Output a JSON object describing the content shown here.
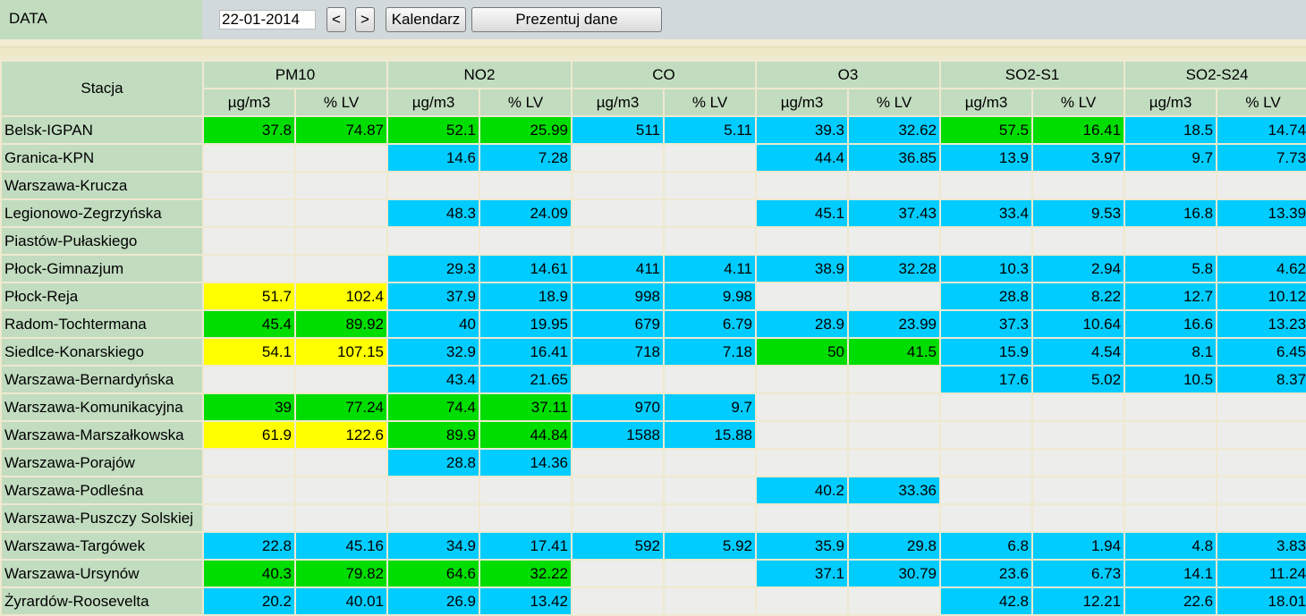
{
  "toolbar": {
    "label": "DATA",
    "date_value": "22-01-2014",
    "prev_label": "<",
    "next_label": ">",
    "calendar_label": "Kalendarz",
    "present_label": "Prezentuj dane"
  },
  "table": {
    "station_header": "Stacja",
    "pollutants": [
      "PM10",
      "NO2",
      "CO",
      "O3",
      "SO2-S1",
      "SO2-S24"
    ],
    "unit_label": "µg/m3",
    "lv_label": "% LV",
    "colors": {
      "none": "#ededeb",
      "blue": "#00ccff",
      "green": "#00dd00",
      "yellow": "#ffff00"
    },
    "rows": [
      {
        "station": "Belsk-IGPAN",
        "cells": [
          [
            "37.8",
            "74.87",
            "green"
          ],
          [
            "52.1",
            "25.99",
            "green"
          ],
          [
            "511",
            "5.11",
            "blue"
          ],
          [
            "39.3",
            "32.62",
            "blue"
          ],
          [
            "57.5",
            "16.41",
            "green"
          ],
          [
            "18.5",
            "14.74",
            "blue"
          ]
        ]
      },
      {
        "station": "Granica-KPN",
        "cells": [
          [
            "",
            "",
            "none"
          ],
          [
            "14.6",
            "7.28",
            "blue"
          ],
          [
            "",
            "",
            "none"
          ],
          [
            "44.4",
            "36.85",
            "blue"
          ],
          [
            "13.9",
            "3.97",
            "blue"
          ],
          [
            "9.7",
            "7.73",
            "blue"
          ]
        ]
      },
      {
        "station": "Warszawa-Krucza",
        "cells": [
          [
            "",
            "",
            "none"
          ],
          [
            "",
            "",
            "none"
          ],
          [
            "",
            "",
            "none"
          ],
          [
            "",
            "",
            "none"
          ],
          [
            "",
            "",
            "none"
          ],
          [
            "",
            "",
            "none"
          ]
        ]
      },
      {
        "station": "Legionowo-Zegrzyńska",
        "cells": [
          [
            "",
            "",
            "none"
          ],
          [
            "48.3",
            "24.09",
            "blue"
          ],
          [
            "",
            "",
            "none"
          ],
          [
            "45.1",
            "37.43",
            "blue"
          ],
          [
            "33.4",
            "9.53",
            "blue"
          ],
          [
            "16.8",
            "13.39",
            "blue"
          ]
        ]
      },
      {
        "station": "Piastów-Pułaskiego",
        "cells": [
          [
            "",
            "",
            "none"
          ],
          [
            "",
            "",
            "none"
          ],
          [
            "",
            "",
            "none"
          ],
          [
            "",
            "",
            "none"
          ],
          [
            "",
            "",
            "none"
          ],
          [
            "",
            "",
            "none"
          ]
        ]
      },
      {
        "station": "Płock-Gimnazjum",
        "cells": [
          [
            "",
            "",
            "none"
          ],
          [
            "29.3",
            "14.61",
            "blue"
          ],
          [
            "411",
            "4.11",
            "blue"
          ],
          [
            "38.9",
            "32.28",
            "blue"
          ],
          [
            "10.3",
            "2.94",
            "blue"
          ],
          [
            "5.8",
            "4.62",
            "blue"
          ]
        ]
      },
      {
        "station": "Płock-Reja",
        "cells": [
          [
            "51.7",
            "102.4",
            "yellow"
          ],
          [
            "37.9",
            "18.9",
            "blue"
          ],
          [
            "998",
            "9.98",
            "blue"
          ],
          [
            "",
            "",
            "none"
          ],
          [
            "28.8",
            "8.22",
            "blue"
          ],
          [
            "12.7",
            "10.12",
            "blue"
          ]
        ]
      },
      {
        "station": "Radom-Tochtermana",
        "cells": [
          [
            "45.4",
            "89.92",
            "green"
          ],
          [
            "40",
            "19.95",
            "blue"
          ],
          [
            "679",
            "6.79",
            "blue"
          ],
          [
            "28.9",
            "23.99",
            "blue"
          ],
          [
            "37.3",
            "10.64",
            "blue"
          ],
          [
            "16.6",
            "13.23",
            "blue"
          ]
        ]
      },
      {
        "station": "Siedlce-Konarskiego",
        "cells": [
          [
            "54.1",
            "107.15",
            "yellow"
          ],
          [
            "32.9",
            "16.41",
            "blue"
          ],
          [
            "718",
            "7.18",
            "blue"
          ],
          [
            "50",
            "41.5",
            "green"
          ],
          [
            "15.9",
            "4.54",
            "blue"
          ],
          [
            "8.1",
            "6.45",
            "blue"
          ]
        ]
      },
      {
        "station": "Warszawa-Bernardyńska",
        "cells": [
          [
            "",
            "",
            "none"
          ],
          [
            "43.4",
            "21.65",
            "blue"
          ],
          [
            "",
            "",
            "none"
          ],
          [
            "",
            "",
            "none"
          ],
          [
            "17.6",
            "5.02",
            "blue"
          ],
          [
            "10.5",
            "8.37",
            "blue"
          ]
        ]
      },
      {
        "station": "Warszawa-Komunikacyjna",
        "cells": [
          [
            "39",
            "77.24",
            "green"
          ],
          [
            "74.4",
            "37.11",
            "green"
          ],
          [
            "970",
            "9.7",
            "blue"
          ],
          [
            "",
            "",
            "none"
          ],
          [
            "",
            "",
            "none"
          ],
          [
            "",
            "",
            "none"
          ]
        ]
      },
      {
        "station": "Warszawa-Marszałkowska",
        "cells": [
          [
            "61.9",
            "122.6",
            "yellow"
          ],
          [
            "89.9",
            "44.84",
            "green"
          ],
          [
            "1588",
            "15.88",
            "blue"
          ],
          [
            "",
            "",
            "none"
          ],
          [
            "",
            "",
            "none"
          ],
          [
            "",
            "",
            "none"
          ]
        ]
      },
      {
        "station": "Warszawa-Porajów",
        "cells": [
          [
            "",
            "",
            "none"
          ],
          [
            "28.8",
            "14.36",
            "blue"
          ],
          [
            "",
            "",
            "none"
          ],
          [
            "",
            "",
            "none"
          ],
          [
            "",
            "",
            "none"
          ],
          [
            "",
            "",
            "none"
          ]
        ]
      },
      {
        "station": "Warszawa-Podleśna",
        "cells": [
          [
            "",
            "",
            "none"
          ],
          [
            "",
            "",
            "none"
          ],
          [
            "",
            "",
            "none"
          ],
          [
            "40.2",
            "33.36",
            "blue"
          ],
          [
            "",
            "",
            "none"
          ],
          [
            "",
            "",
            "none"
          ]
        ]
      },
      {
        "station": "Warszawa-Puszczy Solskiej",
        "cells": [
          [
            "",
            "",
            "none"
          ],
          [
            "",
            "",
            "none"
          ],
          [
            "",
            "",
            "none"
          ],
          [
            "",
            "",
            "none"
          ],
          [
            "",
            "",
            "none"
          ],
          [
            "",
            "",
            "none"
          ]
        ]
      },
      {
        "station": "Warszawa-Targówek",
        "cells": [
          [
            "22.8",
            "45.16",
            "blue"
          ],
          [
            "34.9",
            "17.41",
            "blue"
          ],
          [
            "592",
            "5.92",
            "blue"
          ],
          [
            "35.9",
            "29.8",
            "blue"
          ],
          [
            "6.8",
            "1.94",
            "blue"
          ],
          [
            "4.8",
            "3.83",
            "blue"
          ]
        ]
      },
      {
        "station": "Warszawa-Ursynów",
        "cells": [
          [
            "40.3",
            "79.82",
            "green"
          ],
          [
            "64.6",
            "32.22",
            "green"
          ],
          [
            "",
            "",
            "none"
          ],
          [
            "37.1",
            "30.79",
            "blue"
          ],
          [
            "23.6",
            "6.73",
            "blue"
          ],
          [
            "14.1",
            "11.24",
            "blue"
          ]
        ]
      },
      {
        "station": "Żyrardów-Roosevelta",
        "cells": [
          [
            "20.2",
            "40.01",
            "blue"
          ],
          [
            "26.9",
            "13.42",
            "blue"
          ],
          [
            "",
            "",
            "none"
          ],
          [
            "",
            "",
            "none"
          ],
          [
            "42.8",
            "12.21",
            "blue"
          ],
          [
            "22.6",
            "18.01",
            "blue"
          ]
        ]
      }
    ]
  }
}
